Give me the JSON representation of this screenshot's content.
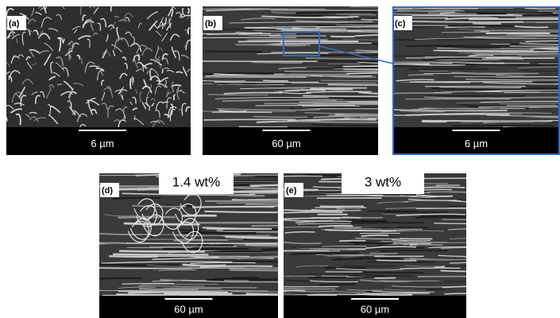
{
  "panels": [
    {
      "label": "(a)",
      "scale_bar": "6 µm"
    },
    {
      "label": "(b)",
      "scale_bar": "60 µm"
    },
    {
      "label": "(c)",
      "scale_bar": "6 µm"
    },
    {
      "label": "(d)",
      "scale_bar": "60 µm",
      "caption": "1.4 wt%"
    },
    {
      "label": "(e)",
      "scale_bar": "60 µm",
      "caption": "3 wt%"
    }
  ]
}
